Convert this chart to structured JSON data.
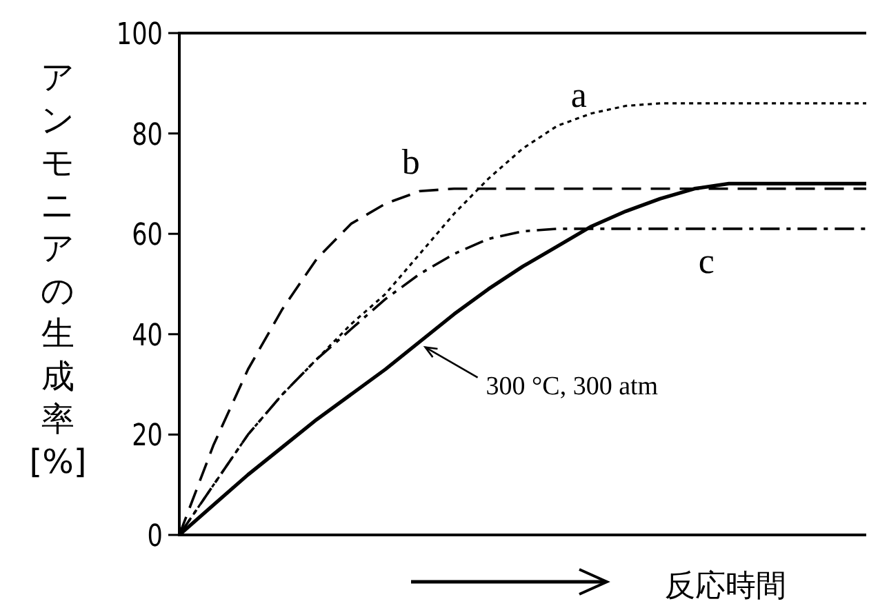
{
  "chart_data": {
    "type": "line",
    "xlabel": "反応時間",
    "ylabel": "アンモニアの生成率[%]",
    "categories": [
      null,
      null,
      null,
      null,
      null,
      null,
      null,
      null,
      null,
      null,
      null,
      null,
      null,
      null,
      null,
      null,
      null,
      null,
      null,
      null,
      null
    ],
    "series": [
      {
        "name": "300 °C, 300 atm",
        "color": "#000000",
        "line_style": "solid",
        "values": [
          0,
          6,
          12,
          17.5,
          23,
          28,
          33,
          38.5,
          44,
          49,
          53.5,
          57.5,
          61.5,
          64.5,
          67,
          69,
          70,
          70,
          70,
          70,
          70
        ]
      },
      {
        "name": "a",
        "color": "#000000",
        "line_style": "dotted",
        "values": [
          0,
          10,
          20,
          28,
          35,
          42,
          48,
          56,
          64,
          71,
          77,
          81.5,
          84,
          85.5,
          86,
          86,
          86,
          86,
          86,
          86,
          86
        ]
      },
      {
        "name": "b",
        "color": "#000000",
        "line_style": "dashed",
        "values": [
          0,
          18,
          33,
          45,
          55,
          62,
          66,
          68.5,
          69,
          69,
          69,
          69,
          69,
          69,
          69,
          69,
          69,
          69,
          69,
          69,
          69
        ]
      },
      {
        "name": "c",
        "color": "#000000",
        "line_style": "dashdot",
        "values": [
          0,
          10,
          20,
          28,
          35,
          41,
          47,
          52,
          56,
          59,
          60.5,
          61,
          61,
          61,
          61,
          61,
          61,
          61,
          61,
          61,
          61
        ]
      }
    ],
    "ylim": [
      0,
      100
    ],
    "yticks": [
      0,
      20,
      40,
      60,
      80,
      100
    ],
    "tick_labels": "y"
  }
}
